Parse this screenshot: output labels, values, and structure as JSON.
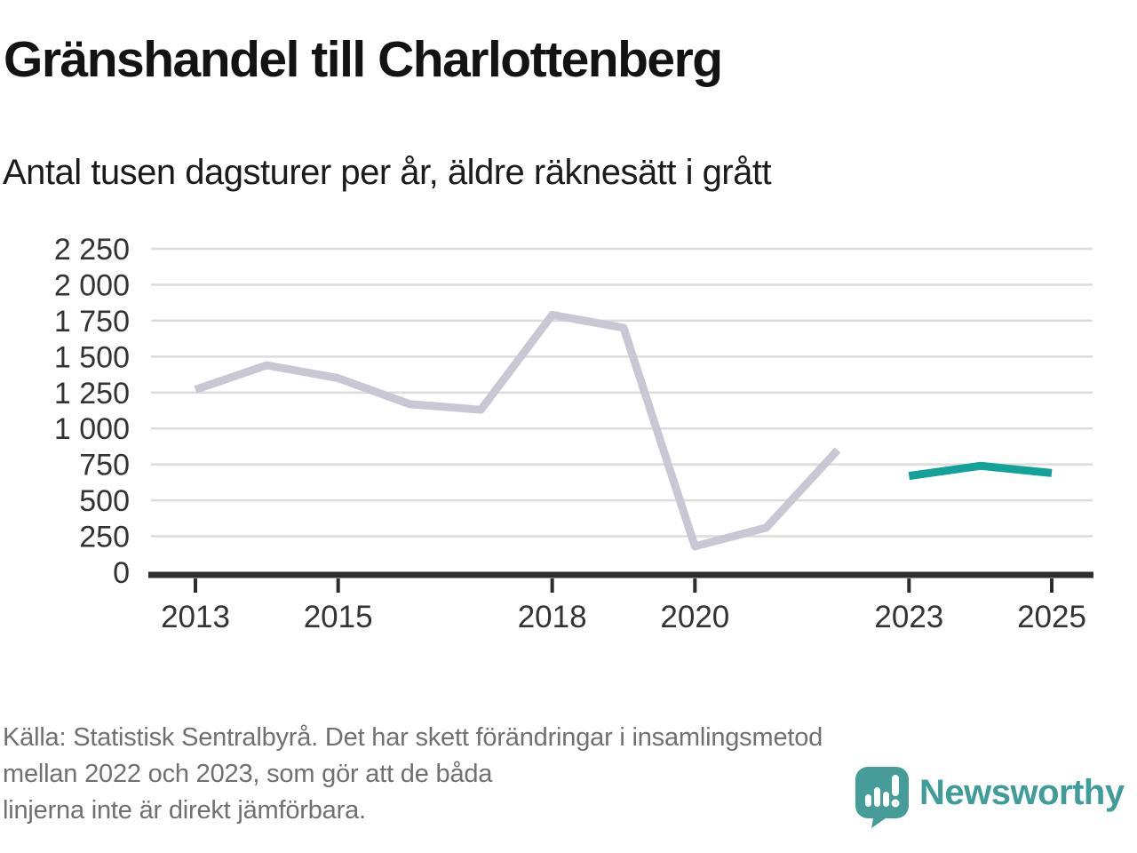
{
  "header": {
    "title": "Gränshandel till Charlottenberg",
    "subtitle": "Antal tusen dagsturer per år, äldre räknesätt i grått"
  },
  "chart_data": {
    "type": "line",
    "title": "Gränshandel till Charlottenberg",
    "subtitle": "Antal tusen dagsturer per år, äldre räknesätt i grått",
    "xlim": [
      2013,
      2025
    ],
    "ylim": [
      0,
      2250
    ],
    "grid": true,
    "legend": "none",
    "y_ticks": [
      {
        "value": 0,
        "label": "0"
      },
      {
        "value": 250,
        "label": "250"
      },
      {
        "value": 500,
        "label": "500"
      },
      {
        "value": 750,
        "label": "750"
      },
      {
        "value": 1000,
        "label": "1 000"
      },
      {
        "value": 1250,
        "label": "1 250"
      },
      {
        "value": 1500,
        "label": "1 500"
      },
      {
        "value": 1750,
        "label": "1 750"
      },
      {
        "value": 2000,
        "label": "2 000"
      },
      {
        "value": 2250,
        "label": "2 250"
      }
    ],
    "x_ticks": [
      {
        "value": 2013,
        "label": "2013"
      },
      {
        "value": 2015,
        "label": "2015"
      },
      {
        "value": 2018,
        "label": "2018"
      },
      {
        "value": 2020,
        "label": "2020"
      },
      {
        "value": 2023,
        "label": "2023"
      },
      {
        "value": 2025,
        "label": "2025"
      }
    ],
    "series": [
      {
        "name": "aldre-raknesatt-gratt",
        "color": "#c9c7d3",
        "x": [
          2013,
          2014,
          2015,
          2016,
          2017,
          2018,
          2019,
          2020,
          2021,
          2022
        ],
        "values": [
          1270,
          1440,
          1350,
          1170,
          1130,
          1790,
          1700,
          180,
          310,
          850
        ]
      },
      {
        "name": "nyare-raknesatt-teal",
        "color": "#12a298",
        "x": [
          2023,
          2024,
          2025
        ],
        "values": [
          670,
          740,
          690
        ]
      }
    ],
    "colors": {
      "grid": "#dcdcdc",
      "axis": "#2d2d2d",
      "tick_text": "#333333"
    }
  },
  "footer": {
    "source_lines": [
      "Källa: Statistisk Sentralbyrå. Det har skett förändringar i insamlingsmetod",
      "mellan 2022 och 2023, som gör att de båda",
      "linjerna inte är direkt jämförbara."
    ],
    "brand": {
      "name": "Newsworthy",
      "color": "#3f9d99"
    }
  }
}
